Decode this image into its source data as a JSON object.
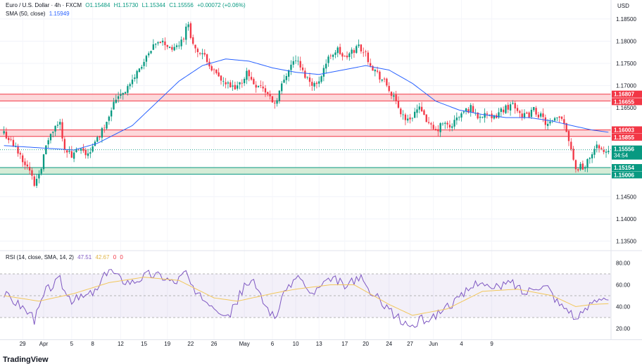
{
  "header": {
    "symbol": "Euro / U.S. Dollar · 4h · FXCM",
    "open": "O1.15484",
    "high": "H1.15730",
    "low": "L1.15344",
    "close": "C1.15556",
    "change": "+0.00072 (+0.06%)",
    "currency": "USD"
  },
  "sma_legend": {
    "label": "SMA (50, close)",
    "value": "1.15949"
  },
  "rsi_legend": {
    "label": "RSI (14, close, SMA, 14, 2)",
    "value1": "47.51",
    "value2": "42.67",
    "value3": "0",
    "value4": "0"
  },
  "countdown": "34:54",
  "brand": "TradingView",
  "colors": {
    "up": "#089981",
    "down": "#f23645",
    "sma": "#2962ff",
    "rsi": "#7e57c2",
    "rsi_ma": "#f2c75c",
    "resistance_fill": "#fccbcd",
    "support_fill": "#c8e6c9"
  },
  "chart_data": [
    {
      "type": "candlestick",
      "title": "Euro / U.S. Dollar · 4h · FXCM",
      "ylabel": "USD",
      "ylim": [
        1.133,
        1.188
      ],
      "yticks": [
        "1.13500",
        "1.14000",
        "1.14500",
        "1.15000",
        "1.15500",
        "1.16000",
        "1.16500",
        "1.17000",
        "1.17500",
        "1.18000",
        "1.18500"
      ],
      "xticks": [
        "29",
        "Apr",
        "5",
        "8",
        "12",
        "15",
        "19",
        "22",
        "26",
        "May",
        "6",
        "10",
        "13",
        "17",
        "20",
        "24",
        "27",
        "Jun",
        "4",
        "9"
      ],
      "zones": [
        {
          "kind": "resistance",
          "low": 1.16655,
          "high": 1.16807,
          "labels": [
            "1.16807",
            "1.16655"
          ]
        },
        {
          "kind": "resistance",
          "low": 1.15855,
          "high": 1.16003,
          "labels": [
            "1.16003",
            "1.15855"
          ]
        },
        {
          "kind": "support",
          "low": 1.15006,
          "high": 1.15154,
          "labels": [
            "1.15154",
            "1.15006"
          ]
        }
      ],
      "last_price": "1.15556",
      "anchors_close": [
        [
          0,
          1.1595
        ],
        [
          6,
          1.155
        ],
        [
          10,
          1.152
        ],
        [
          13,
          1.1478
        ],
        [
          16,
          1.152
        ],
        [
          19,
          1.158
        ],
        [
          22,
          1.1605
        ],
        [
          24,
          1.1615
        ],
        [
          26,
          1.156
        ],
        [
          29,
          1.154
        ],
        [
          32,
          1.1555
        ],
        [
          35,
          1.1545
        ],
        [
          38,
          1.156
        ],
        [
          40,
          1.158
        ],
        [
          43,
          1.161
        ],
        [
          46,
          1.165
        ],
        [
          49,
          1.168
        ],
        [
          52,
          1.169
        ],
        [
          55,
          1.171
        ],
        [
          58,
          1.174
        ],
        [
          61,
          1.176
        ],
        [
          64,
          1.1785
        ],
        [
          67,
          1.18
        ],
        [
          70,
          1.179
        ],
        [
          73,
          1.178
        ],
        [
          76,
          1.18
        ],
        [
          79,
          1.184
        ],
        [
          81,
          1.179
        ],
        [
          84,
          1.177
        ],
        [
          87,
          1.176
        ],
        [
          90,
          1.173
        ],
        [
          93,
          1.171
        ],
        [
          96,
          1.17
        ],
        [
          99,
          1.169
        ],
        [
          102,
          1.171
        ],
        [
          104,
          1.173
        ],
        [
          107,
          1.1705
        ],
        [
          110,
          1.17
        ],
        [
          113,
          1.168
        ],
        [
          116,
          1.166
        ],
        [
          119,
          1.17
        ],
        [
          122,
          1.174
        ],
        [
          125,
          1.176
        ],
        [
          128,
          1.173
        ],
        [
          131,
          1.171
        ],
        [
          134,
          1.17
        ],
        [
          137,
          1.174
        ],
        [
          140,
          1.177
        ],
        [
          143,
          1.178
        ],
        [
          146,
          1.176
        ],
        [
          149,
          1.1775
        ],
        [
          152,
          1.179
        ],
        [
          155,
          1.177
        ],
        [
          158,
          1.174
        ],
        [
          161,
          1.172
        ],
        [
          164,
          1.17
        ],
        [
          167,
          1.167
        ],
        [
          170,
          1.164
        ],
        [
          173,
          1.162
        ],
        [
          176,
          1.164
        ],
        [
          179,
          1.165
        ],
        [
          182,
          1.161
        ],
        [
          185,
          1.1595
        ],
        [
          188,
          1.1615
        ],
        [
          191,
          1.1605
        ],
        [
          194,
          1.1625
        ],
        [
          197,
          1.164
        ],
        [
          200,
          1.165
        ],
        [
          203,
          1.163
        ],
        [
          206,
          1.164
        ],
        [
          209,
          1.162
        ],
        [
          212,
          1.164
        ],
        [
          215,
          1.165
        ],
        [
          218,
          1.166
        ],
        [
          221,
          1.164
        ],
        [
          224,
          1.163
        ],
        [
          227,
          1.1645
        ],
        [
          230,
          1.163
        ],
        [
          233,
          1.161
        ],
        [
          236,
          1.162
        ],
        [
          239,
          1.163
        ],
        [
          241,
          1.16
        ],
        [
          243,
          1.156
        ],
        [
          245,
          1.151
        ],
        [
          247,
          1.152
        ],
        [
          249,
          1.1515
        ],
        [
          251,
          1.154
        ],
        [
          253,
          1.1555
        ],
        [
          255,
          1.1565
        ],
        [
          257,
          1.1548
        ],
        [
          259,
          1.1556
        ]
      ],
      "sma_anchors": [
        [
          0,
          1.1565
        ],
        [
          15,
          1.156
        ],
        [
          30,
          1.1555
        ],
        [
          40,
          1.157
        ],
        [
          55,
          1.161
        ],
        [
          65,
          1.166
        ],
        [
          75,
          1.171
        ],
        [
          85,
          1.1745
        ],
        [
          95,
          1.176
        ],
        [
          105,
          1.1755
        ],
        [
          115,
          1.174
        ],
        [
          125,
          1.173
        ],
        [
          135,
          1.1725
        ],
        [
          145,
          1.1735
        ],
        [
          155,
          1.1745
        ],
        [
          165,
          1.1735
        ],
        [
          175,
          1.1705
        ],
        [
          185,
          1.1665
        ],
        [
          195,
          1.1645
        ],
        [
          205,
          1.1635
        ],
        [
          215,
          1.1628
        ],
        [
          225,
          1.1628
        ],
        [
          235,
          1.162
        ],
        [
          245,
          1.1608
        ],
        [
          252,
          1.16
        ],
        [
          259,
          1.1595
        ]
      ]
    },
    {
      "type": "line",
      "title": "RSI (14, close, SMA, 14, 2)",
      "ylim": [
        10,
        90
      ],
      "yticks": [
        "20.00",
        "40.00",
        "60.00",
        "80.00"
      ],
      "band": [
        30,
        70
      ],
      "anchors": [
        [
          0,
          52
        ],
        [
          8,
          40
        ],
        [
          13,
          28
        ],
        [
          18,
          55
        ],
        [
          24,
          65
        ],
        [
          28,
          45
        ],
        [
          33,
          48
        ],
        [
          40,
          55
        ],
        [
          45,
          75
        ],
        [
          50,
          65
        ],
        [
          55,
          63
        ],
        [
          62,
          70
        ],
        [
          68,
          68
        ],
        [
          73,
          62
        ],
        [
          78,
          72
        ],
        [
          82,
          50
        ],
        [
          88,
          45
        ],
        [
          92,
          38
        ],
        [
          97,
          33
        ],
        [
          102,
          55
        ],
        [
          106,
          65
        ],
        [
          111,
          45
        ],
        [
          116,
          30
        ],
        [
          122,
          60
        ],
        [
          127,
          68
        ],
        [
          131,
          50
        ],
        [
          137,
          60
        ],
        [
          142,
          65
        ],
        [
          147,
          58
        ],
        [
          152,
          68
        ],
        [
          157,
          52
        ],
        [
          162,
          45
        ],
        [
          166,
          35
        ],
        [
          171,
          25
        ],
        [
          175,
          22
        ],
        [
          179,
          28
        ],
        [
          184,
          30
        ],
        [
          189,
          40
        ],
        [
          194,
          45
        ],
        [
          199,
          55
        ],
        [
          204,
          65
        ],
        [
          209,
          55
        ],
        [
          214,
          60
        ],
        [
          218,
          62
        ],
        [
          223,
          52
        ],
        [
          228,
          60
        ],
        [
          233,
          58
        ],
        [
          238,
          42
        ],
        [
          242,
          38
        ],
        [
          245,
          28
        ],
        [
          248,
          33
        ],
        [
          252,
          45
        ],
        [
          256,
          50
        ],
        [
          259,
          47.5
        ]
      ],
      "ma_anchors": [
        [
          0,
          50
        ],
        [
          15,
          45
        ],
        [
          30,
          52
        ],
        [
          45,
          62
        ],
        [
          60,
          67
        ],
        [
          75,
          64
        ],
        [
          90,
          48
        ],
        [
          100,
          45
        ],
        [
          115,
          52
        ],
        [
          125,
          56
        ],
        [
          140,
          60
        ],
        [
          150,
          60
        ],
        [
          165,
          42
        ],
        [
          175,
          32
        ],
        [
          190,
          38
        ],
        [
          205,
          54
        ],
        [
          220,
          56
        ],
        [
          235,
          50
        ],
        [
          245,
          40
        ],
        [
          252,
          42
        ],
        [
          259,
          42.7
        ]
      ]
    }
  ]
}
